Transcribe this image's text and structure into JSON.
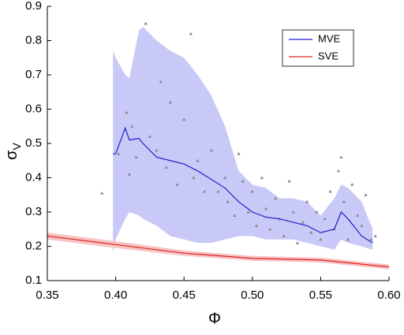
{
  "chart_data": {
    "type": "line",
    "x_label": "Φ",
    "y_label": {
      "symbol": "σ",
      "subscript": "V"
    },
    "xlim": [
      0.35,
      0.6
    ],
    "xticks": [
      {
        "value": 0.35,
        "label": "0.35"
      },
      {
        "value": 0.4,
        "label": "0.40"
      },
      {
        "value": 0.45,
        "label": "0.45"
      },
      {
        "value": 0.5,
        "label": "0.50"
      },
      {
        "value": 0.55,
        "label": "0.55"
      },
      {
        "value": 0.6,
        "label": "0.60"
      }
    ],
    "ylim": [
      0.1,
      0.9
    ],
    "yticks": [
      0.1,
      0.2,
      0.3,
      0.4,
      0.5,
      0.6,
      0.7,
      0.8,
      0.9
    ],
    "legend": "top-right",
    "series": [
      {
        "name": "MVE",
        "color": "#1f1fd0",
        "band_color": "#c9c9f7",
        "x": [
          0.398,
          0.4,
          0.407,
          0.41,
          0.417,
          0.42,
          0.43,
          0.44,
          0.45,
          0.46,
          0.47,
          0.48,
          0.49,
          0.5,
          0.51,
          0.52,
          0.53,
          0.54,
          0.55,
          0.56,
          0.565,
          0.57,
          0.58,
          0.588
        ],
        "values": [
          0.47,
          0.47,
          0.545,
          0.51,
          0.515,
          0.5,
          0.46,
          0.45,
          0.44,
          0.42,
          0.395,
          0.37,
          0.33,
          0.3,
          0.285,
          0.28,
          0.27,
          0.26,
          0.24,
          0.25,
          0.3,
          0.28,
          0.23,
          0.21
        ],
        "upper": [
          0.77,
          0.75,
          0.7,
          0.69,
          0.83,
          0.84,
          0.8,
          0.77,
          0.75,
          0.7,
          0.64,
          0.55,
          0.42,
          0.38,
          0.37,
          0.34,
          0.34,
          0.33,
          0.29,
          0.34,
          0.38,
          0.37,
          0.33,
          0.25
        ],
        "lower": [
          0.18,
          0.22,
          0.28,
          0.3,
          0.29,
          0.28,
          0.26,
          0.23,
          0.22,
          0.21,
          0.21,
          0.22,
          0.23,
          0.23,
          0.22,
          0.22,
          0.22,
          0.21,
          0.2,
          0.19,
          0.22,
          0.21,
          0.2,
          0.19
        ]
      },
      {
        "name": "SVE",
        "color": "#e02020",
        "band_color": "#f7c4c4",
        "x": [
          0.35,
          0.4,
          0.45,
          0.5,
          0.55,
          0.6
        ],
        "values": [
          0.23,
          0.205,
          0.18,
          0.165,
          0.16,
          0.14
        ],
        "upper": [
          0.24,
          0.215,
          0.188,
          0.172,
          0.167,
          0.147
        ],
        "lower": [
          0.22,
          0.195,
          0.172,
          0.158,
          0.153,
          0.133
        ]
      }
    ],
    "scatter": {
      "color": "#8a8a8a",
      "x": [
        0.39,
        0.402,
        0.408,
        0.41,
        0.412,
        0.415,
        0.422,
        0.425,
        0.43,
        0.433,
        0.437,
        0.44,
        0.445,
        0.45,
        0.455,
        0.457,
        0.46,
        0.465,
        0.47,
        0.475,
        0.48,
        0.482,
        0.487,
        0.49,
        0.493,
        0.497,
        0.5,
        0.503,
        0.507,
        0.51,
        0.513,
        0.517,
        0.52,
        0.523,
        0.527,
        0.53,
        0.533,
        0.537,
        0.54,
        0.543,
        0.547,
        0.55,
        0.553,
        0.557,
        0.56,
        0.563,
        0.565,
        0.567,
        0.57,
        0.573,
        0.577,
        0.58,
        0.583,
        0.587,
        0.59
      ],
      "y": [
        0.355,
        0.47,
        0.59,
        0.41,
        0.55,
        0.46,
        0.85,
        0.52,
        0.48,
        0.68,
        0.43,
        0.62,
        0.38,
        0.57,
        0.82,
        0.4,
        0.45,
        0.36,
        0.48,
        0.36,
        0.4,
        0.33,
        0.29,
        0.47,
        0.39,
        0.3,
        0.36,
        0.26,
        0.4,
        0.31,
        0.25,
        0.34,
        0.28,
        0.23,
        0.39,
        0.3,
        0.21,
        0.27,
        0.33,
        0.24,
        0.3,
        0.22,
        0.28,
        0.36,
        0.25,
        0.42,
        0.46,
        0.33,
        0.22,
        0.38,
        0.29,
        0.26,
        0.35,
        0.22,
        0.23
      ]
    }
  }
}
